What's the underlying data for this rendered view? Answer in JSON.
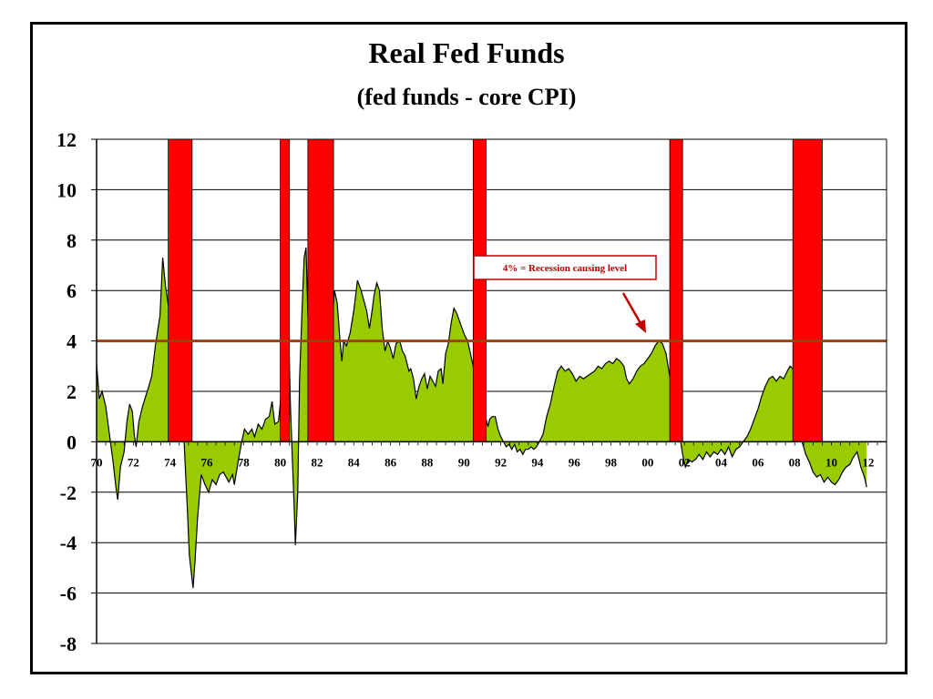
{
  "chart_data": {
    "type": "area",
    "title": "Real Fed Funds",
    "subtitle": "(fed funds - core CPI)",
    "xlabel": "",
    "ylabel": "",
    "xlim": [
      1970,
      2013
    ],
    "ylim": [
      -8,
      12
    ],
    "y_ticks": [
      "12",
      "10",
      "8",
      "6",
      "4",
      "2",
      "0",
      "-2",
      "-4",
      "-6",
      "-8"
    ],
    "x_ticks": [
      "70",
      "72",
      "74",
      "76",
      "78",
      "80",
      "82",
      "84",
      "86",
      "88",
      "90",
      "92",
      "94",
      "96",
      "98",
      "00",
      "02",
      "04",
      "06",
      "08",
      "10",
      "12"
    ],
    "grid": true,
    "fill_color": "#99cc00",
    "recession_color": "#ff0000",
    "reference_line": {
      "y": 4,
      "color": "#a0400a"
    },
    "annotation": {
      "text": "4% = Recession causing level"
    },
    "recessions": [
      {
        "start": 1973.9,
        "end": 1975.2
      },
      {
        "start": 1980.0,
        "end": 1980.5
      },
      {
        "start": 1981.5,
        "end": 1982.9
      },
      {
        "start": 1990.5,
        "end": 1991.2
      },
      {
        "start": 2001.2,
        "end": 2001.9
      },
      {
        "start": 2007.9,
        "end": 2009.5
      }
    ],
    "series": [
      {
        "values": [
          [
            1970.0,
            3.1
          ],
          [
            1970.15,
            1.7
          ],
          [
            1970.3,
            2.0
          ],
          [
            1970.5,
            1.4
          ],
          [
            1970.7,
            0.3
          ],
          [
            1970.9,
            -0.8
          ],
          [
            1971.05,
            -1.8
          ],
          [
            1971.15,
            -2.3
          ],
          [
            1971.3,
            -1.0
          ],
          [
            1971.5,
            -0.4
          ],
          [
            1971.65,
            0.8
          ],
          [
            1971.8,
            1.5
          ],
          [
            1971.95,
            1.2
          ],
          [
            1972.05,
            0.3
          ],
          [
            1972.15,
            -0.2
          ],
          [
            1972.3,
            0.8
          ],
          [
            1972.5,
            1.4
          ],
          [
            1972.8,
            2.1
          ],
          [
            1973.0,
            2.6
          ],
          [
            1973.2,
            3.8
          ],
          [
            1973.45,
            5.0
          ],
          [
            1973.6,
            7.3
          ],
          [
            1973.75,
            6.2
          ],
          [
            1973.95,
            5.2
          ],
          [
            1974.05,
            3.6
          ],
          [
            1974.15,
            3.5
          ],
          [
            1974.3,
            4.2
          ],
          [
            1974.45,
            4.6
          ],
          [
            1974.6,
            3.0
          ],
          [
            1974.75,
            0.2
          ],
          [
            1974.95,
            -2.8
          ],
          [
            1975.05,
            -4.5
          ],
          [
            1975.25,
            -5.8
          ],
          [
            1975.35,
            -4.8
          ],
          [
            1975.5,
            -3.0
          ],
          [
            1975.7,
            -1.3
          ],
          [
            1975.9,
            -1.7
          ],
          [
            1976.1,
            -2.0
          ],
          [
            1976.3,
            -1.5
          ],
          [
            1976.5,
            -1.7
          ],
          [
            1976.7,
            -1.3
          ],
          [
            1976.9,
            -1.2
          ],
          [
            1977.2,
            -1.6
          ],
          [
            1977.4,
            -1.3
          ],
          [
            1977.5,
            -1.7
          ],
          [
            1977.7,
            -0.8
          ],
          [
            1977.9,
            0.0
          ],
          [
            1978.05,
            0.5
          ],
          [
            1978.25,
            0.3
          ],
          [
            1978.45,
            0.5
          ],
          [
            1978.6,
            0.2
          ],
          [
            1978.8,
            0.7
          ],
          [
            1979.0,
            0.5
          ],
          [
            1979.2,
            0.9
          ],
          [
            1979.4,
            1.0
          ],
          [
            1979.55,
            1.6
          ],
          [
            1979.7,
            0.7
          ],
          [
            1979.9,
            0.8
          ],
          [
            1980.0,
            1.5
          ],
          [
            1980.1,
            2.6
          ],
          [
            1980.2,
            3.6
          ],
          [
            1980.3,
            2.5
          ],
          [
            1980.45,
            4.5
          ],
          [
            1980.55,
            1.5
          ],
          [
            1980.65,
            -0.5
          ],
          [
            1980.75,
            -2.5
          ],
          [
            1980.82,
            -4.1
          ],
          [
            1980.95,
            -2.0
          ],
          [
            1981.05,
            2.5
          ],
          [
            1981.2,
            5.5
          ],
          [
            1981.3,
            7.3
          ],
          [
            1981.4,
            7.7
          ],
          [
            1981.5,
            5.0
          ],
          [
            1981.6,
            4.3
          ],
          [
            1981.7,
            7.0
          ],
          [
            1981.8,
            8.7
          ],
          [
            1981.9,
            9.7
          ],
          [
            1982.05,
            8.0
          ],
          [
            1982.15,
            7.3
          ],
          [
            1982.25,
            5.0
          ],
          [
            1982.35,
            4.2
          ],
          [
            1982.5,
            3.0
          ],
          [
            1982.6,
            3.3
          ],
          [
            1982.75,
            4.5
          ],
          [
            1982.85,
            5.0
          ],
          [
            1982.95,
            6.0
          ],
          [
            1983.1,
            5.5
          ],
          [
            1983.25,
            4.0
          ],
          [
            1983.35,
            3.2
          ],
          [
            1983.45,
            4.0
          ],
          [
            1983.6,
            3.8
          ],
          [
            1983.8,
            4.3
          ],
          [
            1984.0,
            5.2
          ],
          [
            1984.2,
            6.4
          ],
          [
            1984.4,
            6.0
          ],
          [
            1984.55,
            5.6
          ],
          [
            1984.7,
            5.2
          ],
          [
            1984.85,
            4.5
          ],
          [
            1985.0,
            5.2
          ],
          [
            1985.1,
            5.8
          ],
          [
            1985.25,
            6.3
          ],
          [
            1985.4,
            6.0
          ],
          [
            1985.55,
            4.5
          ],
          [
            1985.7,
            3.6
          ],
          [
            1985.85,
            4.0
          ],
          [
            1986.0,
            3.7
          ],
          [
            1986.15,
            3.3
          ],
          [
            1986.3,
            3.9
          ],
          [
            1986.5,
            4.0
          ],
          [
            1986.65,
            3.6
          ],
          [
            1986.8,
            3.4
          ],
          [
            1987.0,
            2.8
          ],
          [
            1987.1,
            2.9
          ],
          [
            1987.25,
            2.5
          ],
          [
            1987.4,
            1.7
          ],
          [
            1987.55,
            2.2
          ],
          [
            1987.7,
            2.5
          ],
          [
            1987.85,
            2.7
          ],
          [
            1988.0,
            2.1
          ],
          [
            1988.15,
            2.6
          ],
          [
            1988.3,
            2.4
          ],
          [
            1988.45,
            2.2
          ],
          [
            1988.6,
            2.8
          ],
          [
            1988.75,
            2.9
          ],
          [
            1988.85,
            2.3
          ],
          [
            1989.0,
            3.5
          ],
          [
            1989.15,
            3.9
          ],
          [
            1989.3,
            4.7
          ],
          [
            1989.45,
            5.3
          ],
          [
            1989.6,
            5.1
          ],
          [
            1989.75,
            4.8
          ],
          [
            1989.9,
            4.5
          ],
          [
            1990.05,
            4.2
          ],
          [
            1990.2,
            4.0
          ],
          [
            1990.35,
            3.5
          ],
          [
            1990.5,
            3.0
          ],
          [
            1990.7,
            2.8
          ],
          [
            1990.85,
            2.2
          ],
          [
            1991.0,
            1.8
          ],
          [
            1991.1,
            1.2
          ],
          [
            1991.2,
            0.9
          ],
          [
            1991.3,
            0.6
          ],
          [
            1991.4,
            0.9
          ],
          [
            1991.55,
            1.0
          ],
          [
            1991.7,
            1.0
          ],
          [
            1991.85,
            0.5
          ],
          [
            1992.0,
            0.2
          ],
          [
            1992.15,
            0.0
          ],
          [
            1992.3,
            -0.2
          ],
          [
            1992.45,
            -0.1
          ],
          [
            1992.6,
            -0.3
          ],
          [
            1992.75,
            -0.1
          ],
          [
            1992.9,
            -0.4
          ],
          [
            1993.05,
            -0.3
          ],
          [
            1993.2,
            -0.5
          ],
          [
            1993.35,
            -0.3
          ],
          [
            1993.5,
            -0.3
          ],
          [
            1993.65,
            -0.2
          ],
          [
            1993.8,
            -0.3
          ],
          [
            1993.95,
            -0.2
          ],
          [
            1994.1,
            0.0
          ],
          [
            1994.3,
            0.3
          ],
          [
            1994.5,
            1.0
          ],
          [
            1994.7,
            1.5
          ],
          [
            1994.9,
            2.2
          ],
          [
            1995.1,
            2.8
          ],
          [
            1995.3,
            3.0
          ],
          [
            1995.5,
            2.8
          ],
          [
            1995.7,
            2.9
          ],
          [
            1995.9,
            2.7
          ],
          [
            1996.1,
            2.4
          ],
          [
            1996.3,
            2.6
          ],
          [
            1996.5,
            2.5
          ],
          [
            1996.7,
            2.6
          ],
          [
            1996.9,
            2.7
          ],
          [
            1997.1,
            2.8
          ],
          [
            1997.3,
            3.0
          ],
          [
            1997.5,
            2.9
          ],
          [
            1997.7,
            3.1
          ],
          [
            1997.9,
            3.2
          ],
          [
            1998.1,
            3.1
          ],
          [
            1998.3,
            3.3
          ],
          [
            1998.5,
            3.2
          ],
          [
            1998.7,
            3.0
          ],
          [
            1998.85,
            2.5
          ],
          [
            1999.0,
            2.3
          ],
          [
            1999.2,
            2.5
          ],
          [
            1999.4,
            2.8
          ],
          [
            1999.6,
            3.0
          ],
          [
            1999.8,
            3.1
          ],
          [
            2000.0,
            3.3
          ],
          [
            2000.2,
            3.5
          ],
          [
            2000.4,
            3.8
          ],
          [
            2000.6,
            4.0
          ],
          [
            2000.8,
            3.9
          ],
          [
            2001.0,
            3.5
          ],
          [
            2001.15,
            2.8
          ],
          [
            2001.3,
            2.2
          ],
          [
            2001.45,
            1.5
          ],
          [
            2001.6,
            0.8
          ],
          [
            2001.75,
            0.2
          ],
          [
            2001.9,
            -0.5
          ],
          [
            2002.05,
            -1.0
          ],
          [
            2002.2,
            -0.7
          ],
          [
            2002.4,
            -0.8
          ],
          [
            2002.6,
            -0.7
          ],
          [
            2002.8,
            -0.5
          ],
          [
            2003.0,
            -0.7
          ],
          [
            2003.2,
            -0.4
          ],
          [
            2003.4,
            -0.6
          ],
          [
            2003.6,
            -0.4
          ],
          [
            2003.8,
            -0.5
          ],
          [
            2004.0,
            -0.3
          ],
          [
            2004.2,
            -0.5
          ],
          [
            2004.4,
            -0.2
          ],
          [
            2004.6,
            -0.6
          ],
          [
            2004.8,
            -0.3
          ],
          [
            2005.0,
            -0.2
          ],
          [
            2005.2,
            0.0
          ],
          [
            2005.4,
            0.2
          ],
          [
            2005.6,
            0.5
          ],
          [
            2005.8,
            0.9
          ],
          [
            2006.0,
            1.3
          ],
          [
            2006.2,
            1.8
          ],
          [
            2006.4,
            2.2
          ],
          [
            2006.6,
            2.5
          ],
          [
            2006.8,
            2.6
          ],
          [
            2007.0,
            2.4
          ],
          [
            2007.2,
            2.6
          ],
          [
            2007.4,
            2.5
          ],
          [
            2007.6,
            2.8
          ],
          [
            2007.75,
            3.0
          ],
          [
            2007.9,
            2.9
          ],
          [
            2008.05,
            2.2
          ],
          [
            2008.2,
            1.0
          ],
          [
            2008.4,
            0.0
          ],
          [
            2008.6,
            -0.5
          ],
          [
            2008.8,
            -0.8
          ],
          [
            2009.0,
            -1.2
          ],
          [
            2009.2,
            -1.4
          ],
          [
            2009.4,
            -1.3
          ],
          [
            2009.6,
            -1.6
          ],
          [
            2009.8,
            -1.4
          ],
          [
            2010.0,
            -1.6
          ],
          [
            2010.2,
            -1.7
          ],
          [
            2010.4,
            -1.5
          ],
          [
            2010.6,
            -1.2
          ],
          [
            2010.8,
            -1.0
          ],
          [
            2011.0,
            -0.9
          ],
          [
            2011.2,
            -0.6
          ],
          [
            2011.4,
            -0.4
          ],
          [
            2011.6,
            -1.0
          ],
          [
            2011.8,
            -1.4
          ],
          [
            2011.92,
            -1.8
          ]
        ]
      }
    ]
  }
}
